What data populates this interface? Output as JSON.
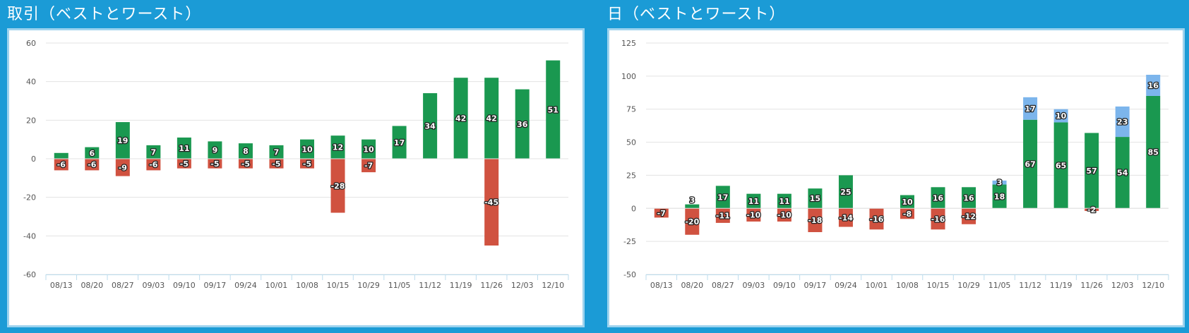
{
  "panels": [
    {
      "title": "取引（ベストとワースト）"
    },
    {
      "title": "日（ベストとワースト）"
    }
  ],
  "colors": {
    "background": "#1b9bd6",
    "positive": "#1a9850",
    "negative": "#d05240",
    "extra": "#7cb5ec"
  },
  "chart_data": [
    {
      "type": "bar",
      "stacking": "normal",
      "categories": [
        "08/13",
        "08/20",
        "08/27",
        "09/03",
        "09/10",
        "09/17",
        "09/24",
        "10/01",
        "10/08",
        "10/15",
        "10/29",
        "11/05",
        "11/12",
        "11/19",
        "11/26",
        "12/03",
        "12/10"
      ],
      "series": [
        {
          "color": "#1a9850",
          "values": [
            3,
            6,
            19,
            7,
            11,
            9,
            8,
            7,
            10,
            12,
            10,
            17,
            34,
            42,
            42,
            36,
            51
          ],
          "labels": [
            null,
            "6",
            "19",
            "7",
            "11",
            "9",
            "8",
            "7",
            "10",
            "12",
            "10",
            "17",
            "34",
            "42",
            "42",
            "36",
            "51"
          ]
        },
        {
          "color": "#d05240",
          "values": [
            -6,
            -6,
            -9,
            -6,
            -5,
            -5,
            -5,
            -5,
            -5,
            -28,
            -7,
            0,
            0,
            0,
            -45,
            0,
            0
          ],
          "labels": [
            "-6",
            "-6",
            "-9",
            "-6",
            "-5",
            "-5",
            "-5",
            "-5",
            "-5",
            "-28",
            "-7",
            null,
            null,
            null,
            "-45",
            null,
            null
          ]
        }
      ],
      "yticks": [
        60,
        40,
        20,
        0,
        -20,
        -40,
        -60
      ],
      "ylim": [
        -60,
        60
      ],
      "grid": true,
      "legend": "none"
    },
    {
      "type": "bar",
      "stacking": "normal",
      "categories": [
        "08/13",
        "08/20",
        "08/27",
        "09/03",
        "09/10",
        "09/17",
        "09/24",
        "10/01",
        "10/08",
        "10/15",
        "10/29",
        "11/05",
        "11/12",
        "11/19",
        "11/26",
        "12/03",
        "12/10"
      ],
      "series": [
        {
          "color": "#1a9850",
          "values": [
            0,
            3,
            17,
            11,
            11,
            15,
            25,
            0,
            10,
            16,
            16,
            18,
            67,
            65,
            57,
            54,
            85
          ],
          "labels": [
            null,
            null,
            "17",
            "11",
            "11",
            "15",
            "25",
            null,
            "10",
            "16",
            "16",
            "18",
            "67",
            "65",
            "57",
            "54",
            "85"
          ]
        },
        {
          "color": "#7cb5ec",
          "values": [
            0,
            0,
            0,
            0,
            0,
            0,
            0,
            0,
            0,
            0,
            0,
            3,
            17,
            10,
            0,
            23,
            16
          ],
          "labels": [
            null,
            null,
            null,
            null,
            null,
            null,
            null,
            null,
            null,
            null,
            null,
            "3",
            "17",
            "10",
            null,
            "23",
            "16"
          ]
        },
        {
          "color": "#d05240",
          "values": [
            -7,
            -20,
            -11,
            -10,
            -10,
            -18,
            -14,
            -16,
            -8,
            -16,
            -12,
            0,
            0,
            0,
            -2,
            0,
            0
          ],
          "labels": [
            "-7",
            "-20",
            "-11",
            "-10",
            "-10",
            "-18",
            "-14",
            "-16",
            "-8",
            "-16",
            "-12",
            null,
            null,
            null,
            "-2",
            null,
            null
          ]
        }
      ],
      "extra_labels": [
        {
          "category_index": 1,
          "text": "3"
        }
      ],
      "yticks": [
        125,
        100,
        75,
        50,
        25,
        0,
        -25,
        -50
      ],
      "ylim": [
        -50,
        125
      ],
      "grid": true,
      "legend": "none"
    }
  ]
}
